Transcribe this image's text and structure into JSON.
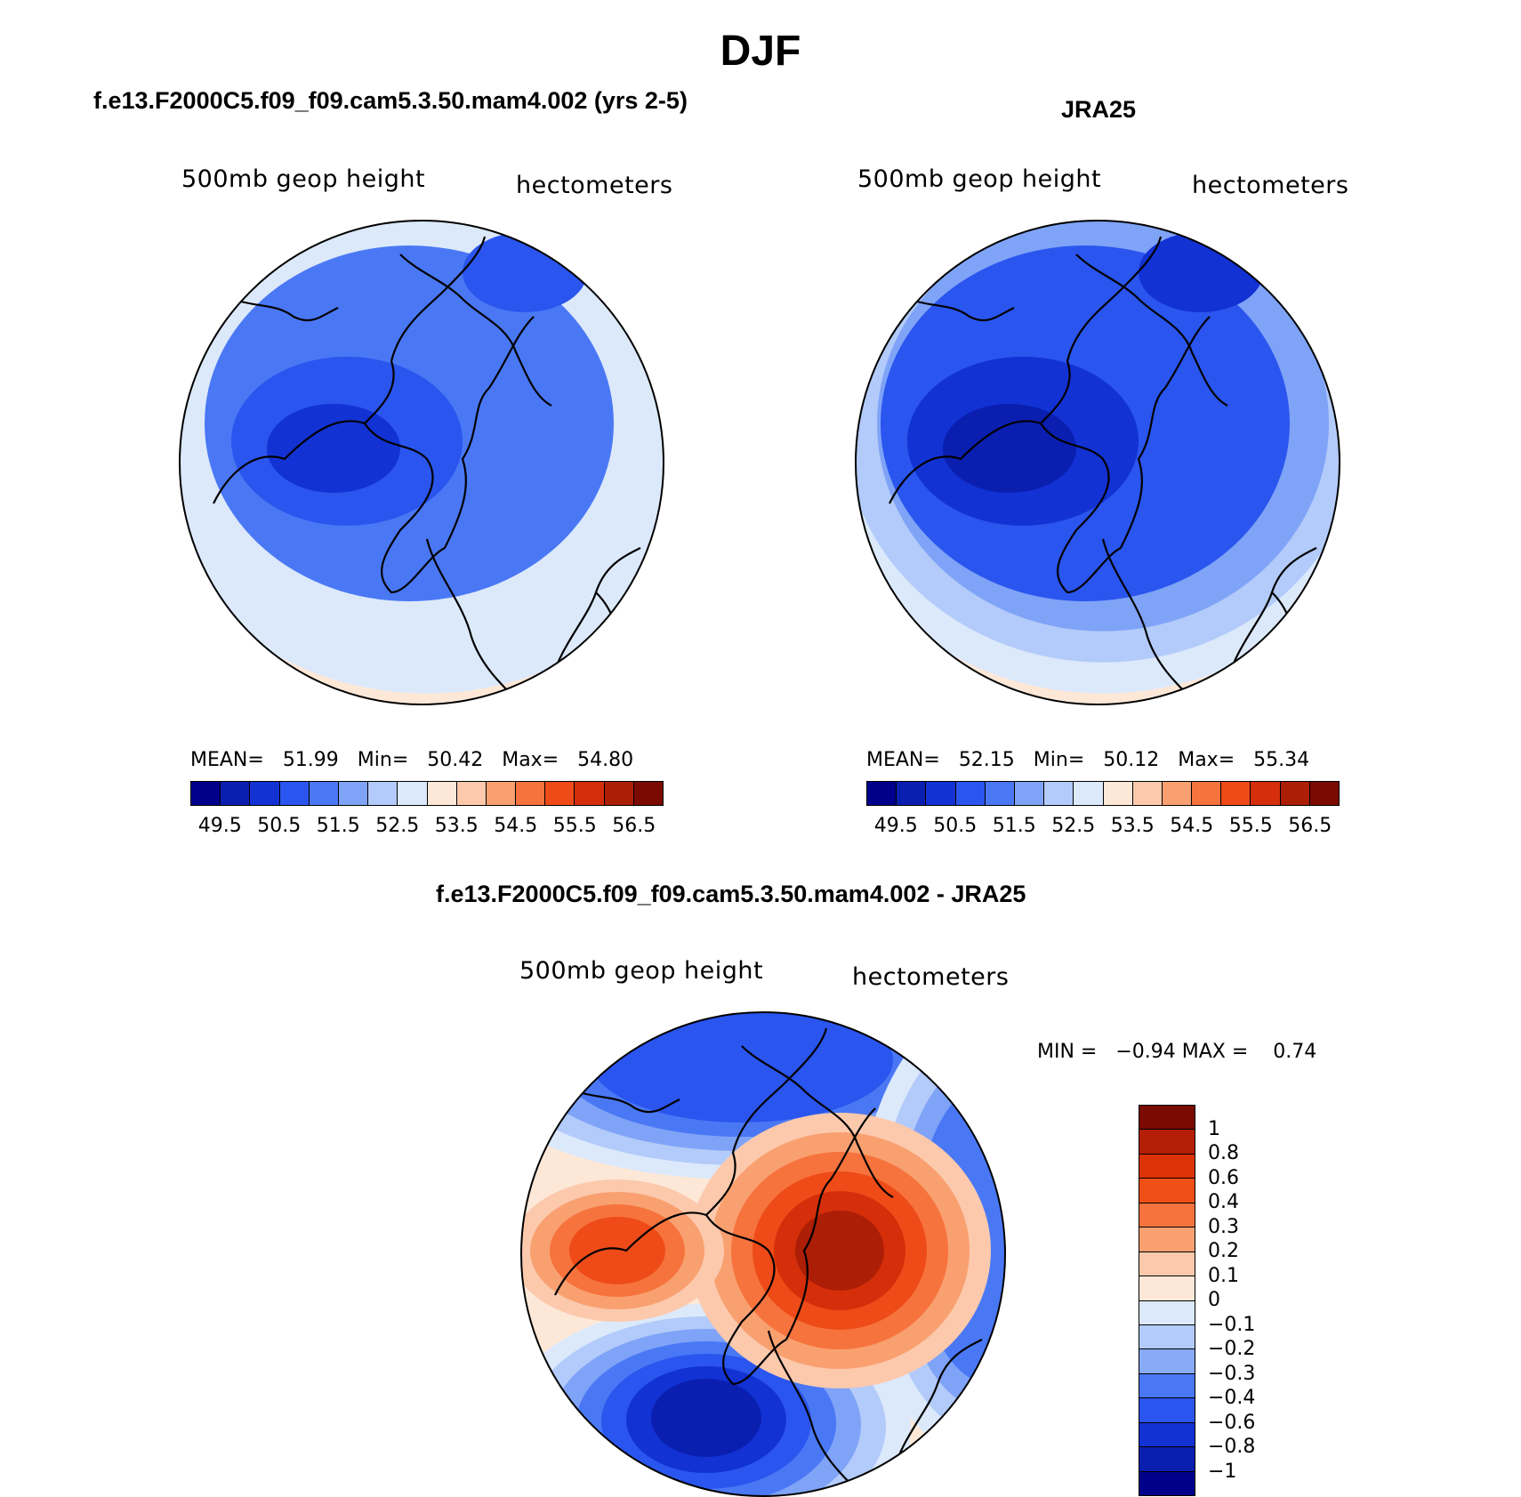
{
  "title": "DJF",
  "panels": {
    "model": {
      "title": "f.e13.F2000C5.f09_f09.cam5.3.50.mam4.002 (yrs 2-5)",
      "left_label": "500mb geop height",
      "right_label": "hectometers",
      "mean_label": "MEAN=",
      "mean": "51.99",
      "min_label": "Min=",
      "min": "50.42",
      "max_label": "Max=",
      "max": "54.80"
    },
    "obs": {
      "title": "JRA25",
      "left_label": "500mb geop height",
      "right_label": "hectometers",
      "mean_label": "MEAN=",
      "mean": "52.15",
      "min_label": "Min=",
      "min": "50.12",
      "max_label": "Max=",
      "max": "55.34"
    },
    "diff": {
      "title": "f.e13.F2000C5.f09_f09.cam5.3.50.mam4.002 - JRA25",
      "left_label": "500mb geop height",
      "right_label": "hectometers",
      "min_label": "MIN =",
      "min": "−0.94",
      "max_label": "MAX =",
      "max": "0.74"
    }
  },
  "abs_colorbar": {
    "colors": [
      "#00008b",
      "#0a1fb0",
      "#1232d4",
      "#2a55ee",
      "#4a78f5",
      "#7fa3f7",
      "#b3cbfa",
      "#dce9fb",
      "#fde8d8",
      "#fcc9ad",
      "#f9a070",
      "#f6733d",
      "#ee4b18",
      "#d42e0a",
      "#ad1e06",
      "#7a0a02"
    ],
    "ticks": [
      "49.5",
      "50.5",
      "51.5",
      "52.5",
      "53.5",
      "54.5",
      "55.5",
      "56.5"
    ]
  },
  "diff_colorbar": {
    "colors": [
      "#7a0a02",
      "#b51e06",
      "#dd3208",
      "#f04f15",
      "#f6733d",
      "#f9a070",
      "#fcc9ad",
      "#fde8d8",
      "#dce9fb",
      "#b3cbfa",
      "#88aaf7",
      "#4a78f5",
      "#2a55ee",
      "#1232d4",
      "#0a1fb0",
      "#00008b"
    ],
    "ticks": [
      "1",
      "0.8",
      "0.6",
      "0.4",
      "0.3",
      "0.2",
      "0.1",
      "0",
      "−0.1",
      "−0.2",
      "−0.3",
      "−0.4",
      "−0.6",
      "−0.8",
      "−1"
    ]
  },
  "map_colors": {
    "model": {
      "base": "#4a78f5",
      "lobes": [
        "#2a55ee",
        "#1232d4",
        "#7fa3f7"
      ],
      "rings": [
        "#dce9fb",
        "#fde8d8",
        "#fcc9ad",
        "#f9a070",
        "#f6733d",
        "#ee4b18"
      ]
    },
    "obs": {
      "base": "#2a55ee",
      "lobes": [
        "#1232d4",
        "#0a1fb0",
        "#00008b"
      ],
      "rings": [
        "#7fa3f7",
        "#b3cbfa",
        "#dce9fb",
        "#fde8d8",
        "#fcc9ad",
        "#f9a070",
        "#f6733d",
        "#ee4b18"
      ]
    },
    "diff": {
      "base": "#fde8d8",
      "pos": [
        "#fcc9ad",
        "#f9a070",
        "#f6733d",
        "#ee4b18",
        "#d42e0a",
        "#ad1e06"
      ],
      "neg": [
        "#dce9fb",
        "#b3cbfa",
        "#7fa3f7",
        "#4a78f5",
        "#2a55ee",
        "#1232d4",
        "#0a1fb0"
      ]
    }
  }
}
